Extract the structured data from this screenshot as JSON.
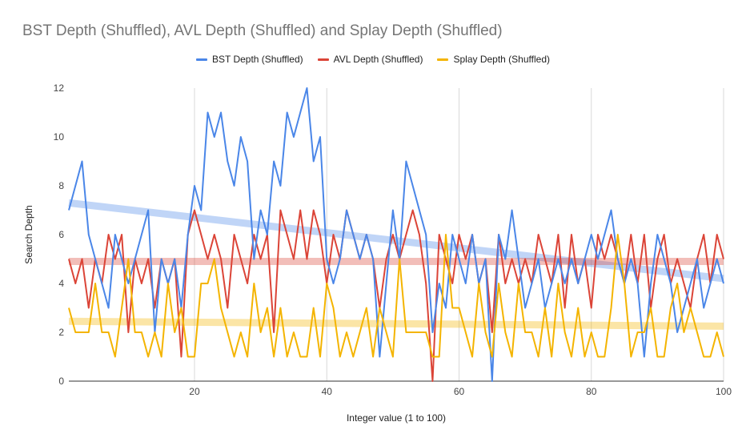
{
  "chart_data": {
    "type": "line",
    "title": "BST Depth (Shuffled), AVL Depth (Shuffled) and Splay Depth (Shuffled)",
    "xlabel": "Integer value (1 to 100)",
    "ylabel": "Search Depth",
    "xlim": [
      1,
      100
    ],
    "ylim": [
      0,
      12
    ],
    "x_ticks": [
      20,
      40,
      60,
      80,
      100
    ],
    "y_ticks": [
      0,
      2,
      4,
      6,
      8,
      10,
      12
    ],
    "grid": "vertical",
    "legend_position": "top",
    "series": [
      {
        "name": "BST Depth (Shuffled)",
        "color": "#4a86e8",
        "values": [
          7,
          8,
          9,
          6,
          5,
          4,
          3,
          6,
          5,
          4,
          5,
          6,
          7,
          2,
          5,
          4,
          5,
          3,
          6,
          8,
          7,
          11,
          10,
          11,
          9,
          8,
          10,
          9,
          5,
          7,
          6,
          9,
          8,
          11,
          10,
          11,
          12,
          9,
          10,
          5,
          4,
          5,
          7,
          6,
          5,
          6,
          5,
          1,
          4,
          7,
          5,
          9,
          8,
          7,
          6,
          2,
          4,
          3,
          6,
          5,
          4,
          6,
          4,
          5,
          0,
          6,
          5,
          7,
          5,
          3,
          4,
          5,
          3,
          4,
          5,
          4,
          5,
          4,
          5,
          6,
          5,
          6,
          7,
          5,
          4,
          5,
          4,
          1,
          4,
          6,
          5,
          4,
          2,
          3,
          4,
          5,
          3,
          4,
          5,
          4
        ],
        "trend": [
          7.3,
          4.2
        ]
      },
      {
        "name": "AVL Depth (Shuffled)",
        "color": "#db4437",
        "values": [
          5,
          4,
          5,
          3,
          5,
          4,
          6,
          5,
          6,
          2,
          5,
          4,
          5,
          3,
          5,
          4,
          5,
          1,
          6,
          7,
          6,
          5,
          6,
          5,
          3,
          6,
          5,
          4,
          6,
          5,
          6,
          2,
          7,
          6,
          5,
          7,
          5,
          7,
          6,
          4,
          6,
          5,
          7,
          6,
          5,
          6,
          5,
          3,
          5,
          6,
          5,
          6,
          7,
          6,
          4,
          0,
          6,
          5,
          4,
          6,
          5,
          6,
          4,
          5,
          2,
          6,
          4,
          5,
          4,
          5,
          4,
          6,
          5,
          4,
          6,
          3,
          6,
          4,
          5,
          3,
          6,
          5,
          6,
          5,
          4,
          6,
          4,
          6,
          3,
          5,
          6,
          4,
          5,
          4,
          3,
          5,
          6,
          4,
          6,
          5
        ],
        "trend": [
          4.9,
          4.9
        ]
      },
      {
        "name": "Splay Depth (Shuffled)",
        "color": "#f4b400",
        "values": [
          3,
          2,
          2,
          2,
          4,
          2,
          2,
          1,
          3,
          5,
          2,
          2,
          1,
          2,
          1,
          4,
          2,
          3,
          1,
          1,
          4,
          4,
          5,
          3,
          2,
          1,
          2,
          1,
          4,
          2,
          3,
          1,
          3,
          1,
          2,
          1,
          1,
          3,
          1,
          4,
          3,
          1,
          2,
          1,
          2,
          3,
          1,
          3,
          2,
          1,
          5,
          2,
          2,
          2,
          2,
          1,
          1,
          6,
          3,
          3,
          2,
          1,
          4,
          2,
          1,
          4,
          2,
          1,
          4,
          2,
          2,
          1,
          3,
          1,
          4,
          2,
          1,
          3,
          1,
          2,
          1,
          1,
          3,
          6,
          4,
          1,
          2,
          2,
          3,
          1,
          1,
          3,
          4,
          2,
          3,
          2,
          1,
          1,
          2,
          1
        ],
        "trend": [
          2.45,
          2.25
        ]
      }
    ]
  }
}
